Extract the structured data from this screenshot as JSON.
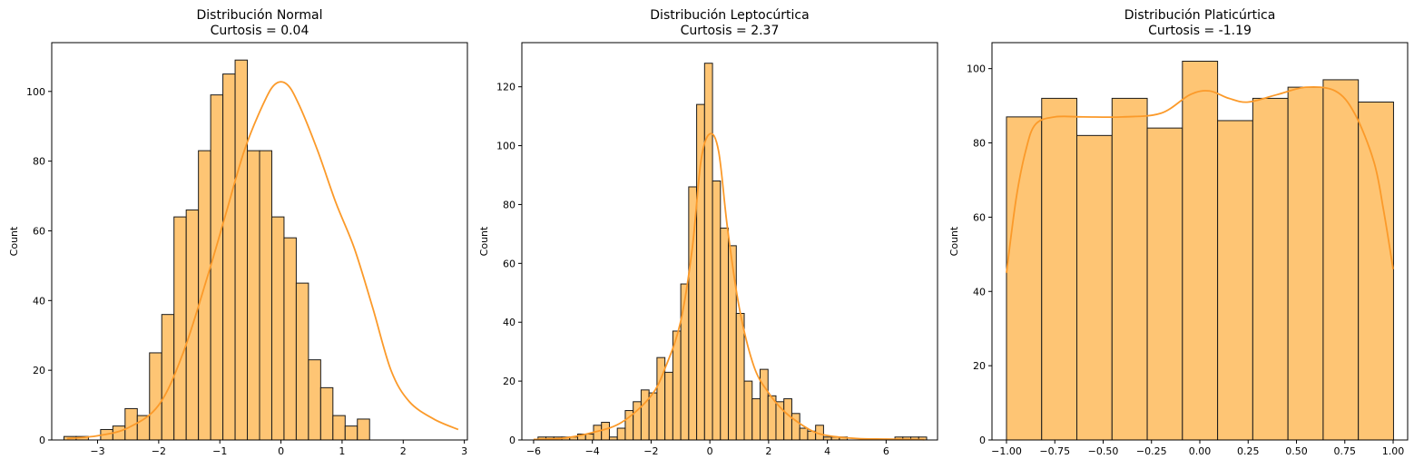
{
  "chart_data": [
    {
      "type": "bar",
      "title": "Distribución Normal",
      "subtitle": "Curtosis = 0.04",
      "xlabel": "",
      "ylabel": "Count",
      "xlim": [
        -3.75,
        3.05
      ],
      "ylim": [
        0,
        114
      ],
      "xticks": [
        -3,
        -2,
        -1,
        0,
        1,
        2,
        3
      ],
      "xtick_labels": [
        "−3",
        "−2",
        "−1",
        "0",
        "1",
        "2",
        "3"
      ],
      "yticks": [
        0,
        20,
        40,
        60,
        80,
        100
      ],
      "bin_start": -3.55,
      "bin_width": 0.2,
      "values": [
        1,
        1,
        0,
        3,
        4,
        9,
        7,
        25,
        36,
        64,
        66,
        83,
        99,
        105,
        109,
        83,
        83,
        64,
        58,
        45,
        23,
        15,
        7,
        4,
        6
      ],
      "kde": [
        [
          -3.5,
          0.4
        ],
        [
          -3.0,
          1.2
        ],
        [
          -2.5,
          3.5
        ],
        [
          -2.0,
          10
        ],
        [
          -1.6,
          25
        ],
        [
          -1.2,
          47
        ],
        [
          -0.9,
          65
        ],
        [
          -0.6,
          83
        ],
        [
          -0.3,
          96
        ],
        [
          -0.1,
          102
        ],
        [
          0.1,
          102
        ],
        [
          0.3,
          96
        ],
        [
          0.6,
          83
        ],
        [
          0.9,
          68
        ],
        [
          1.2,
          55
        ],
        [
          1.5,
          38
        ],
        [
          1.8,
          20
        ],
        [
          2.1,
          11
        ],
        [
          2.5,
          6
        ],
        [
          2.9,
          3
        ]
      ],
      "color": "#fec574",
      "kde_color": "#fb9a2a"
    },
    {
      "type": "bar",
      "title": "Distribución Leptocúrtica",
      "subtitle": "Curtosis = 2.37",
      "xlabel": "",
      "ylabel": "Count",
      "xlim": [
        -6.4,
        7.75
      ],
      "ylim": [
        0,
        135
      ],
      "xticks": [
        -6,
        -4,
        -2,
        0,
        2,
        4,
        6
      ],
      "xtick_labels": [
        "−6",
        "−4",
        "−2",
        "0",
        "2",
        "4",
        "6"
      ],
      "yticks": [
        0,
        20,
        40,
        60,
        80,
        100,
        120
      ],
      "bin_start": -5.85,
      "bin_width": 0.27,
      "values": [
        1,
        1,
        1,
        1,
        1,
        2,
        2,
        5,
        6,
        1,
        4,
        10,
        13,
        17,
        16,
        28,
        23,
        37,
        53,
        86,
        114,
        128,
        88,
        72,
        66,
        43,
        20,
        14,
        24,
        15,
        13,
        14,
        9,
        4,
        3,
        5,
        1,
        1,
        1,
        0,
        0,
        0,
        0,
        0,
        0,
        1,
        1,
        1,
        1
      ],
      "kde": [
        [
          -6.0,
          0.2
        ],
        [
          -5.0,
          0.6
        ],
        [
          -4.0,
          2.5
        ],
        [
          -3.0,
          6
        ],
        [
          -2.0,
          15
        ],
        [
          -1.5,
          25
        ],
        [
          -1.0,
          40
        ],
        [
          -0.6,
          65
        ],
        [
          -0.3,
          95
        ],
        [
          0.0,
          104
        ],
        [
          0.3,
          98
        ],
        [
          0.6,
          72
        ],
        [
          1.0,
          45
        ],
        [
          1.5,
          25
        ],
        [
          2.0,
          16
        ],
        [
          2.5,
          10
        ],
        [
          3.0,
          6
        ],
        [
          3.5,
          3
        ],
        [
          4.0,
          1.5
        ],
        [
          5.0,
          0.5
        ],
        [
          6.0,
          0.3
        ],
        [
          7.3,
          0.1
        ]
      ],
      "color": "#fec574",
      "kde_color": "#fb9a2a"
    },
    {
      "type": "bar",
      "title": "Distribución Platicúrtica",
      "subtitle": "Curtosis = -1.19",
      "xlabel": "",
      "ylabel": "Count",
      "xlim": [
        -1.075,
        1.075
      ],
      "ylim": [
        0,
        107
      ],
      "xticks": [
        -1.0,
        -0.75,
        -0.5,
        -0.25,
        0.0,
        0.25,
        0.5,
        0.75,
        1.0
      ],
      "xtick_labels": [
        "−1.00",
        "−0.75",
        "−0.50",
        "−0.25",
        "0.00",
        "0.25",
        "0.50",
        "0.75",
        "1.00"
      ],
      "yticks": [
        0,
        20,
        40,
        60,
        80,
        100
      ],
      "bin_start": -1.0,
      "bin_width": 0.182,
      "values": [
        87,
        92,
        82,
        92,
        84,
        102,
        86,
        92,
        95,
        97,
        91
      ],
      "kde": [
        [
          -1.0,
          45
        ],
        [
          -0.95,
          65
        ],
        [
          -0.9,
          78
        ],
        [
          -0.85,
          85
        ],
        [
          -0.75,
          87
        ],
        [
          -0.6,
          87
        ],
        [
          -0.4,
          87
        ],
        [
          -0.2,
          88
        ],
        [
          -0.05,
          93
        ],
        [
          0.05,
          94
        ],
        [
          0.15,
          92
        ],
        [
          0.25,
          91
        ],
        [
          0.4,
          93
        ],
        [
          0.55,
          95
        ],
        [
          0.7,
          94
        ],
        [
          0.8,
          88
        ],
        [
          0.9,
          75
        ],
        [
          0.95,
          62
        ],
        [
          1.0,
          46
        ]
      ],
      "color": "#fec574",
      "kde_color": "#fb9a2a"
    }
  ]
}
